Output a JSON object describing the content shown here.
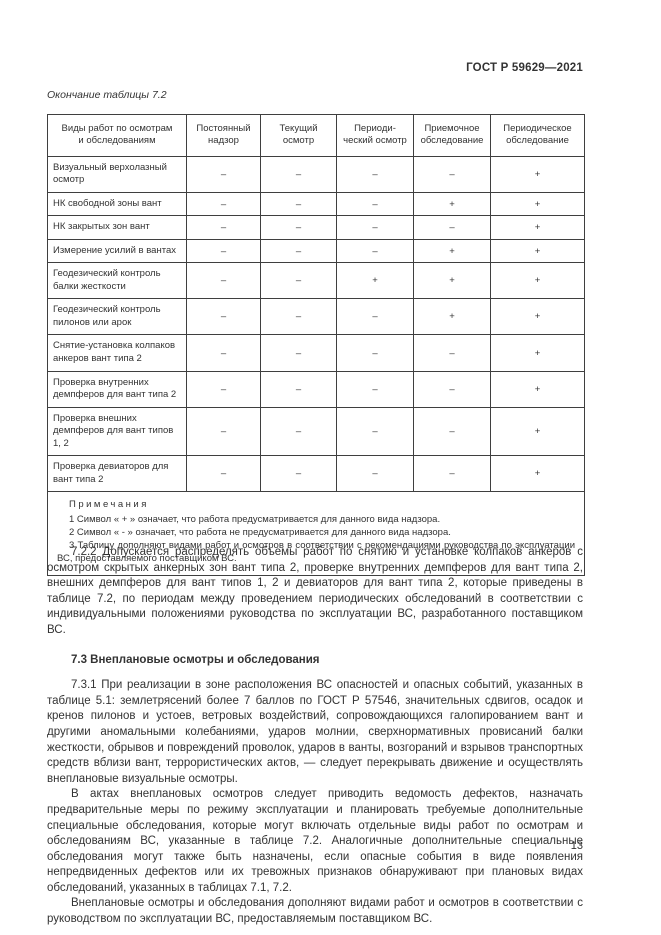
{
  "header": {
    "standard": "ГОСТ Р 59629—2021"
  },
  "table_caption": "Окончание таблицы 7.2",
  "table": {
    "columns": [
      "Виды работ по осмотрам\nи обследованиям",
      "Постоянный\nнадзор",
      "Текущий\nосмотр",
      "Периоди-\nческий осмотр",
      "Приемочное\nобследование",
      "Периодическое\nобследование"
    ],
    "rows": [
      {
        "label": "Визуальный верхолазный осмотр",
        "values": [
          "–",
          "–",
          "–",
          "–",
          "+"
        ]
      },
      {
        "label": "НК свободной зоны вант",
        "values": [
          "–",
          "–",
          "–",
          "+",
          "+"
        ]
      },
      {
        "label": "НК закрытых зон вант",
        "values": [
          "–",
          "–",
          "–",
          "–",
          "+"
        ]
      },
      {
        "label": "Измерение усилий в вантах",
        "values": [
          "–",
          "–",
          "–",
          "+",
          "+"
        ]
      },
      {
        "label": "Геодезический контроль балки жесткости",
        "values": [
          "–",
          "–",
          "+",
          "+",
          "+"
        ]
      },
      {
        "label": "Геодезический контроль пилонов или арок",
        "values": [
          "–",
          "–",
          "–",
          "+",
          "+"
        ]
      },
      {
        "label": "Снятие-установка колпаков анкеров вант типа 2",
        "values": [
          "–",
          "–",
          "–",
          "–",
          "+"
        ]
      },
      {
        "label": "Проверка внутренних демпферов для вант типа 2",
        "values": [
          "–",
          "–",
          "–",
          "–",
          "+"
        ]
      },
      {
        "label": "Проверка внешних демпферов для вант типов 1, 2",
        "values": [
          "–",
          "–",
          "–",
          "–",
          "+"
        ]
      },
      {
        "label": "Проверка девиаторов для вант типа 2",
        "values": [
          "–",
          "–",
          "–",
          "–",
          "+"
        ]
      }
    ],
    "notes_title": "Примечания",
    "notes": [
      "1  Символ « + » означает, что работа предусматривается для данного вида надзора.",
      "2  Символ « - » означает, что работа не предусматривается для данного вида надзора.",
      "3  Таблицу дополняют видами работ и осмотров в соответствии с рекомендациями руководства по эксплуатации ВС, предоставляемого поставщиком ВС."
    ]
  },
  "content": {
    "para_7_2_2": "7.2.2 Допускается распределять объемы работ по снятию и установке колпаков анкеров с осмотром скрытых анкерных зон вант типа 2, проверке внутренних демпферов для вант типа 2, внешних демпферов для вант типов 1, 2 и девиаторов для вант типа 2, которые приведены в таблице 7.2, по периодам между проведением периодических обследований в соответствии с индивидуальными положениями руководства по эксплуатации ВС, разработанного поставщиком ВС.",
    "heading_7_3": "7.3 Внеплановые осмотры и обследования",
    "para_7_3_1": "7.3.1  При реализации в зоне расположения ВС опасностей и опасных событий, указанных в таблице 5.1: землетрясений более 7 баллов по ГОСТ Р 57546, значительных сдвигов, осадок и кренов пилонов и устоев, ветровых воздействий, сопровождающихся галопированием вант и другими аномальными колебаниями, ударов молнии, сверхнормативных провисаний балки жесткости, обрывов и повреждений проволок, ударов в ванты, возгораний и взрывов транспортных средств вблизи вант, террористических актов, — следует перекрывать движение и осуществлять внеплановые визуальные осмотры.",
    "para_acts": "В актах внеплановых осмотров следует приводить ведомость дефектов, назначать предварительные меры по режиму эксплуатации и планировать требуемые дополнительные специальные обследования, которые могут включать отдельные виды работ по осмотрам и обследованиям ВС, указанные в таблице 7.2. Аналогичные дополнительные специальные обследования могут также быть назначены, если опасные события в виде появления непредвиденных дефектов или их тревожных признаков обнаруживают при плановых видах обследований, указанных в таблицах 7.1, 7.2.",
    "para_unplanned": "Внеплановые осмотры и обследования дополняют видами работ и осмотров в соответствии с руководством по эксплуатации ВС, предоставляемым поставщиком ВС."
  },
  "footer": {
    "page_number": "13"
  }
}
